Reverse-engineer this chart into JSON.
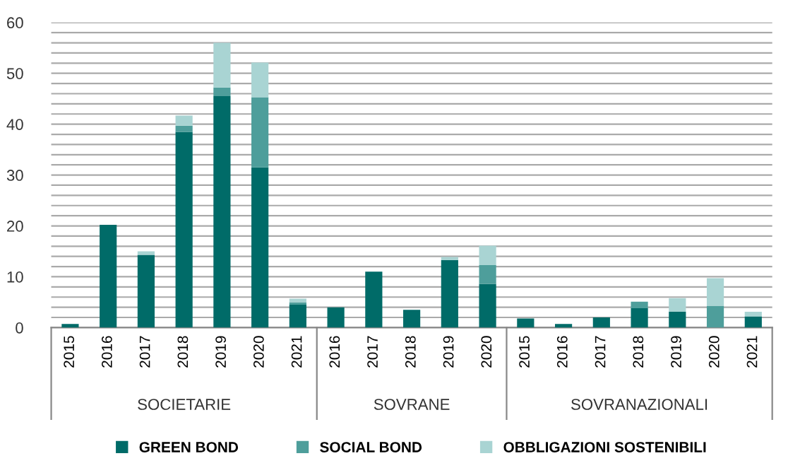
{
  "chart_data": {
    "type": "bar",
    "stacked": true,
    "categories": [
      "2015",
      "2016",
      "2017",
      "2018",
      "2019",
      "2020",
      "2021",
      "2016",
      "2017",
      "2018",
      "2019",
      "2020",
      "2015",
      "2016",
      "2017",
      "2018",
      "2019",
      "2020",
      "2021"
    ],
    "series": [
      {
        "name": "GREEN BOND",
        "color": "#006b68",
        "values": [
          0.7,
          20.2,
          14.3,
          38.5,
          45.5,
          31.5,
          4.5,
          4.0,
          11.0,
          3.5,
          13.3,
          8.6,
          1.8,
          0.7,
          2.0,
          3.8,
          3.1,
          0,
          2.2
        ]
      },
      {
        "name": "SOCIAL BOND",
        "color": "#4e9e9b",
        "values": [
          0,
          0,
          0,
          1.2,
          1.7,
          13.8,
          0.5,
          0,
          0,
          0,
          0,
          3.7,
          0,
          0,
          0,
          1.3,
          0,
          4.3,
          0
        ]
      },
      {
        "name": "OBBLIGAZIONI SOSTENIBILI",
        "color": "#a9d4d3",
        "values": [
          0,
          null,
          0.7,
          2.0,
          8.8,
          6.8,
          0.7,
          0,
          0,
          null,
          0.6,
          3.8,
          0,
          0,
          null,
          0,
          2.7,
          5.4,
          0.9
        ]
      }
    ],
    "annotations": [
      "SOCIETARIE",
      "SOVRANE",
      "SOVRANAZIONALI"
    ],
    "ylim": [
      0,
      60
    ],
    "yticks": [
      0,
      {
        "value": 2,
        "label": null
      },
      {
        "value": 4,
        "label": null
      },
      {
        "value": 6,
        "label": null
      },
      {
        "value": 8,
        "label": null
      },
      10,
      {
        "value": 12,
        "label": null
      },
      {
        "value": 14,
        "label": null
      },
      {
        "value": 16,
        "label": null
      },
      {
        "value": 18,
        "label": null
      },
      20,
      {
        "value": 22,
        "label": null
      },
      {
        "value": 24,
        "label": null
      },
      {
        "value": 26,
        "label": null
      },
      {
        "value": 28,
        "label": null
      },
      30,
      {
        "value": 32,
        "label": null
      },
      {
        "value": 34,
        "label": null
      },
      {
        "value": 36,
        "label": null
      },
      {
        "value": 38,
        "label": null
      },
      40,
      {
        "value": 42,
        "label": null
      },
      {
        "value": 44,
        "label": null
      },
      {
        "value": 46,
        "label": null
      },
      {
        "value": 48,
        "label": null
      },
      50,
      {
        "value": 52,
        "label": null
      },
      {
        "value": 54,
        "label": null
      },
      {
        "value": 56,
        "label": null
      },
      {
        "value": 58,
        "label": null
      },
      60
    ],
    "grid": "y",
    "legend": "bottom"
  }
}
